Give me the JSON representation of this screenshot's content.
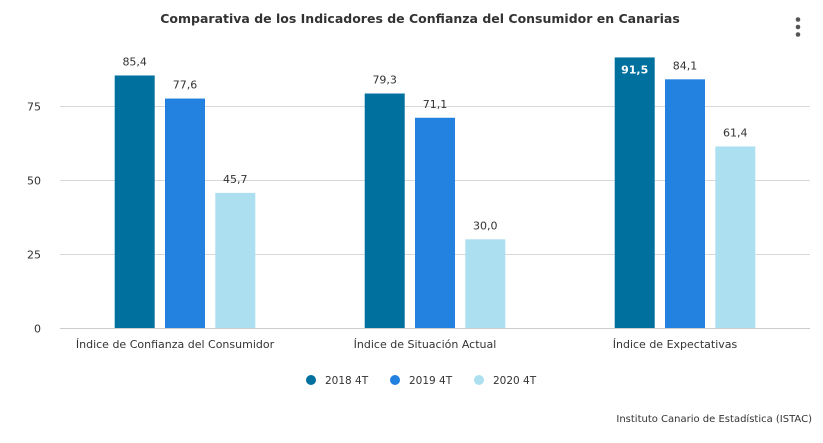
{
  "chart_data": {
    "type": "bar",
    "title": "Comparativa de los Indicadores de Confianza del Consumidor en Canarias",
    "categories": [
      "Índice de Confianza del Consumidor",
      "Índice de Situación Actual",
      "Índice de Expectativas"
    ],
    "series": [
      {
        "name": "2018 4T",
        "color": "#00709f",
        "values": [
          85.4,
          79.3,
          91.5
        ],
        "labels": [
          "85,4",
          "79,3",
          "91,5"
        ]
      },
      {
        "name": "2019 4T",
        "color": "#2382e0",
        "values": [
          77.6,
          71.1,
          84.1
        ],
        "labels": [
          "77,6",
          "71,1",
          "84,1"
        ]
      },
      {
        "name": "2020 4T",
        "color": "#acdff0",
        "values": [
          45.7,
          30.0,
          61.4
        ],
        "labels": [
          "45,7",
          "30,0",
          "61,4"
        ]
      }
    ],
    "ylim": [
      0,
      93
    ],
    "yticks": [
      0,
      25,
      50,
      75
    ],
    "ytick_labels": [
      "0",
      "25",
      "50",
      "75"
    ],
    "grid": true,
    "legend_position": "bottom-center",
    "credits": "Instituto Canario de Estadística (ISTAC)",
    "menu_icon": "kebab-menu-icon"
  }
}
